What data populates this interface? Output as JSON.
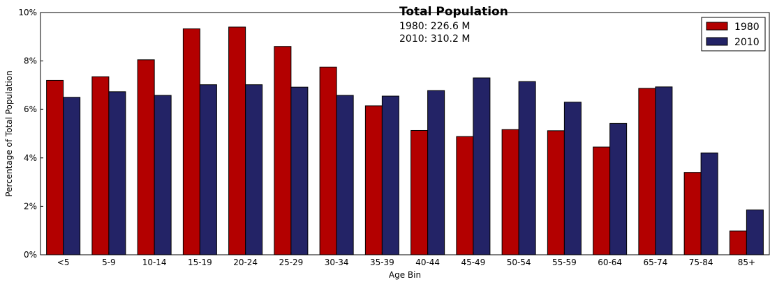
{
  "chart_data": {
    "type": "bar",
    "title": "Total Population",
    "annotations": [
      "1980: 226.6 M",
      "2010: 310.2 M"
    ],
    "xlabel": "Age Bin",
    "ylabel": "Percentage of Total Population",
    "ylim": [
      0,
      10
    ],
    "yticks": [
      0,
      2,
      4,
      6,
      8,
      10
    ],
    "ytick_labels": [
      "0%",
      "2%",
      "4%",
      "6%",
      "8%",
      "10%"
    ],
    "categories": [
      "<5",
      "5-9",
      "10-14",
      "15-19",
      "20-24",
      "25-29",
      "30-34",
      "35-39",
      "40-44",
      "45-49",
      "50-54",
      "55-59",
      "60-64",
      "65-74",
      "75-84",
      "85+"
    ],
    "series": [
      {
        "name": "1980",
        "color": "#b30000",
        "values": [
          7.2,
          7.35,
          8.05,
          9.33,
          9.4,
          8.6,
          7.75,
          6.15,
          5.13,
          4.88,
          5.17,
          5.12,
          4.45,
          6.87,
          3.4,
          0.98
        ]
      },
      {
        "name": "2010",
        "color": "#232366",
        "values": [
          6.5,
          6.73,
          6.58,
          7.02,
          7.02,
          6.92,
          6.58,
          6.55,
          6.78,
          7.3,
          7.15,
          6.3,
          5.42,
          6.93,
          4.2,
          1.85
        ]
      }
    ],
    "legend_position": "top-right",
    "grid": false
  }
}
